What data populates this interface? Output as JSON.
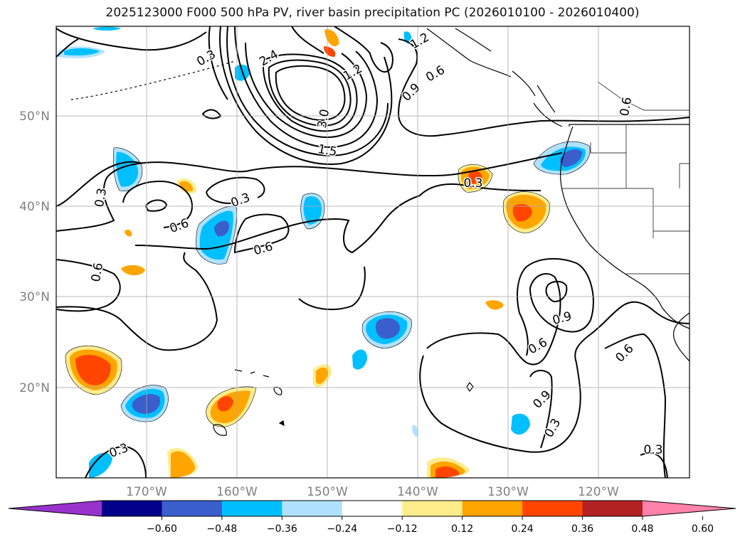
{
  "title": "2025123000 F000 500 hPa PV, river basin precipitation PC (2026010100 - 2026010400)",
  "map": {
    "lon_labels": [
      "170°W",
      "160°W",
      "150°W",
      "140°W",
      "130°W",
      "120°W"
    ],
    "lat_labels": [
      "50°N",
      "40°N",
      "30°N",
      "20°N"
    ],
    "gridline_color": "#aaaaaa",
    "label_color": "#808080"
  },
  "contour_labels": [
    {
      "id": "c1",
      "text": "0.3"
    },
    {
      "id": "c2",
      "text": "1.2"
    },
    {
      "id": "c3",
      "text": "2.4"
    },
    {
      "id": "c4",
      "text": "1.2"
    },
    {
      "id": "c5",
      "text": "0.9"
    },
    {
      "id": "c6",
      "text": "0.6"
    },
    {
      "id": "c7",
      "text": "3.0"
    },
    {
      "id": "c8",
      "text": "1.5"
    },
    {
      "id": "c9",
      "text": "0.6"
    },
    {
      "id": "c10",
      "text": "0.3"
    },
    {
      "id": "c11",
      "text": "0.3"
    },
    {
      "id": "c12",
      "text": "0.6"
    },
    {
      "id": "c13",
      "text": "0.6"
    },
    {
      "id": "c14",
      "text": "0.3"
    },
    {
      "id": "c15",
      "text": "0.6"
    },
    {
      "id": "c16",
      "text": "0.9"
    },
    {
      "id": "c17",
      "text": "0.6"
    },
    {
      "id": "c18",
      "text": "0.6"
    },
    {
      "id": "c19",
      "text": "0.9"
    },
    {
      "id": "c20",
      "text": "0.3"
    },
    {
      "id": "c21",
      "text": "0.3"
    },
    {
      "id": "c22",
      "text": "0.3"
    }
  ],
  "colorbar": {
    "colors": [
      "#9932cc",
      "#00008b",
      "#3a5fcd",
      "#00bfff",
      "#b0e2ff",
      "#ffffff",
      "#ffec8b",
      "#ffa500",
      "#ff4500",
      "#b22222",
      "#ff82ab"
    ],
    "tick_labels": [
      "−0.60",
      "−0.48",
      "−0.36",
      "−0.24",
      "−0.12",
      "0.12",
      "0.24",
      "0.36",
      "0.48",
      "0.60"
    ]
  }
}
